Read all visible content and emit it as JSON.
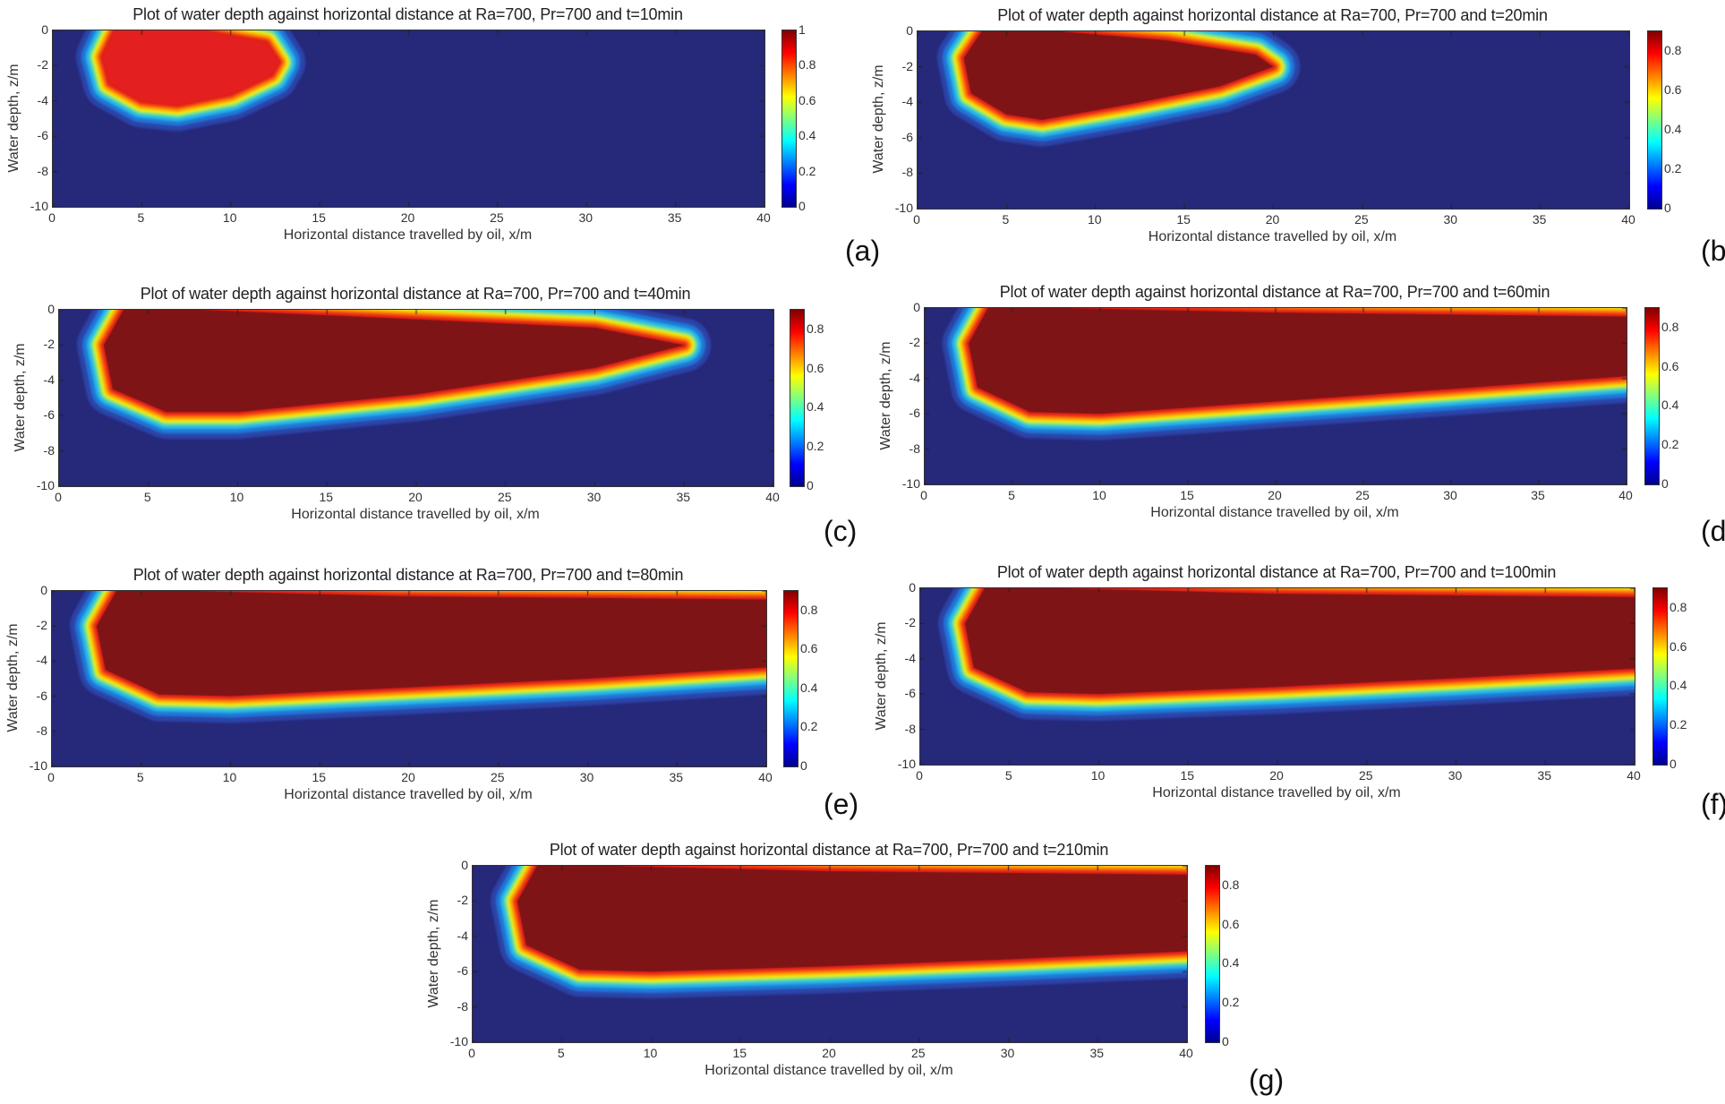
{
  "chart_data": [
    {
      "type": "heatmap",
      "panel_label": "(a)",
      "title": "Plot of water depth against horizontal distance at Ra=700, Pr=700 and t=10min",
      "xlabel": "Horizontal distance travelled by oil, x/m",
      "ylabel": "Water depth, z/m",
      "xlim": [
        0,
        40
      ],
      "ylim": [
        -10,
        0
      ],
      "xticks": [
        "0",
        "5",
        "10",
        "15",
        "20",
        "25",
        "30",
        "35",
        "40"
      ],
      "yticks": [
        "0",
        "-2",
        "-4",
        "-6",
        "-8",
        "-10"
      ],
      "clim": [
        0,
        1
      ],
      "colorbar_ticks": [
        "1",
        "0.8",
        "0.6",
        "0.4",
        "0.2",
        "0"
      ],
      "colormap": "jet",
      "core_color": "#e41f1f",
      "core_outline": [
        [
          3.5,
          0
        ],
        [
          2.8,
          -1.5
        ],
        [
          3.2,
          -3
        ],
        [
          5,
          -4
        ],
        [
          7,
          -4.2
        ],
        [
          10,
          -3.6
        ],
        [
          12.3,
          -2.5
        ],
        [
          12.7,
          -1.8
        ],
        [
          12,
          -0.7
        ],
        [
          8,
          0
        ]
      ]
    },
    {
      "type": "heatmap",
      "panel_label": "(b)",
      "title": "Plot of water depth against horizontal distance at Ra=700, Pr=700 and t=20min",
      "xlabel": "Horizontal distance travelled by oil, x/m",
      "ylabel": "Water depth, z/m",
      "xlim": [
        0,
        40
      ],
      "ylim": [
        -10,
        0
      ],
      "xticks": [
        "0",
        "5",
        "10",
        "15",
        "20",
        "25",
        "30",
        "35",
        "40"
      ],
      "yticks": [
        "0",
        "-2",
        "-4",
        "-6",
        "-8",
        "-10"
      ],
      "clim": [
        0,
        0.9
      ],
      "colorbar_ticks": [
        "0.8",
        "0.6",
        "0.4",
        "0.2",
        "0"
      ],
      "colormap": "jet",
      "core_color": "#7f1416",
      "core_outline": [
        [
          3.6,
          0
        ],
        [
          2.6,
          -1.5
        ],
        [
          3,
          -3.5
        ],
        [
          5,
          -4.7
        ],
        [
          7,
          -5
        ],
        [
          12,
          -4.1
        ],
        [
          17,
          -3.1
        ],
        [
          20,
          -2
        ],
        [
          19,
          -1.3
        ],
        [
          14,
          -0.5
        ],
        [
          8,
          0
        ]
      ]
    },
    {
      "type": "heatmap",
      "panel_label": "(c)",
      "title": "Plot of water depth against horizontal distance at Ra=700, Pr=700 and t=40min",
      "xlabel": "Horizontal distance travelled by oil, x/m",
      "ylabel": "Water depth, z/m",
      "xlim": [
        0,
        40
      ],
      "ylim": [
        -10,
        0
      ],
      "xticks": [
        "0",
        "5",
        "10",
        "15",
        "20",
        "25",
        "30",
        "35",
        "40"
      ],
      "yticks": [
        "0",
        "-2",
        "-4",
        "-6",
        "-8",
        "-10"
      ],
      "clim": [
        0,
        0.9
      ],
      "colorbar_ticks": [
        "0.8",
        "0.6",
        "0.4",
        "0.2",
        "0"
      ],
      "colormap": "jet",
      "core_color": "#7f1416",
      "core_outline": [
        [
          3.6,
          0
        ],
        [
          2.5,
          -2
        ],
        [
          3,
          -4.5
        ],
        [
          6,
          -5.8
        ],
        [
          10,
          -5.8
        ],
        [
          20,
          -4.8
        ],
        [
          30,
          -3.3
        ],
        [
          35,
          -2
        ],
        [
          30,
          -1
        ],
        [
          15,
          -0.3
        ],
        [
          8,
          0
        ]
      ]
    },
    {
      "type": "heatmap",
      "panel_label": "(d)",
      "title": "Plot of water depth against horizontal distance at Ra=700, Pr=700 and t=60min",
      "xlabel": "Horizontal distance travelled by oil, x/m",
      "ylabel": "Water depth, z/m",
      "xlim": [
        0,
        40
      ],
      "ylim": [
        -10,
        0
      ],
      "xticks": [
        "0",
        "5",
        "10",
        "15",
        "20",
        "25",
        "30",
        "35",
        "40"
      ],
      "yticks": [
        "0",
        "-2",
        "-4",
        "-6",
        "-8",
        "-10"
      ],
      "clim": [
        0,
        0.9
      ],
      "colorbar_ticks": [
        "0.8",
        "0.6",
        "0.4",
        "0.2",
        "0"
      ],
      "colormap": "jet",
      "core_color": "#7f1416",
      "core_outline": [
        [
          3.6,
          0
        ],
        [
          2.5,
          -2
        ],
        [
          3,
          -4.5
        ],
        [
          6,
          -5.9
        ],
        [
          10,
          -6
        ],
        [
          20,
          -5.3
        ],
        [
          30,
          -4.6
        ],
        [
          41,
          -3.8
        ],
        [
          41,
          -0.5
        ],
        [
          20,
          -0.25
        ],
        [
          8,
          0
        ]
      ]
    },
    {
      "type": "heatmap",
      "panel_label": "(e)",
      "title": "Plot of water depth against horizontal distance at Ra=700, Pr=700 and t=80min",
      "xlabel": "Horizontal distance travelled by oil, x/m",
      "ylabel": "Water depth, z/m",
      "xlim": [
        0,
        40
      ],
      "ylim": [
        -10,
        0
      ],
      "xticks": [
        "0",
        "5",
        "10",
        "15",
        "20",
        "25",
        "30",
        "35",
        "40"
      ],
      "yticks": [
        "0",
        "-2",
        "-4",
        "-6",
        "-8",
        "-10"
      ],
      "clim": [
        0,
        0.9
      ],
      "colorbar_ticks": [
        "0.8",
        "0.6",
        "0.4",
        "0.2",
        "0"
      ],
      "colormap": "jet",
      "core_color": "#7f1416",
      "core_outline": [
        [
          3.6,
          0
        ],
        [
          2.5,
          -2
        ],
        [
          3,
          -4.5
        ],
        [
          6,
          -5.9
        ],
        [
          10,
          -6
        ],
        [
          20,
          -5.5
        ],
        [
          30,
          -5
        ],
        [
          41,
          -4.3
        ],
        [
          41,
          -0.5
        ],
        [
          20,
          -0.3
        ],
        [
          8,
          0
        ]
      ]
    },
    {
      "type": "heatmap",
      "panel_label": "(f)",
      "title": "Plot of water depth against horizontal distance at Ra=700, Pr=700 and t=100min",
      "xlabel": "Horizontal distance travelled by oil, x/m",
      "ylabel": "Water depth, z/m",
      "xlim": [
        0,
        40
      ],
      "ylim": [
        -10,
        0
      ],
      "xticks": [
        "0",
        "5",
        "10",
        "15",
        "20",
        "25",
        "30",
        "35",
        "40"
      ],
      "yticks": [
        "0",
        "-2",
        "-4",
        "-6",
        "-8",
        "-10"
      ],
      "clim": [
        0,
        0.9
      ],
      "colorbar_ticks": [
        "0.8",
        "0.6",
        "0.4",
        "0.2",
        "0"
      ],
      "colormap": "jet",
      "core_color": "#7f1416",
      "core_outline": [
        [
          3.6,
          0
        ],
        [
          2.5,
          -2
        ],
        [
          3,
          -4.5
        ],
        [
          6,
          -5.9
        ],
        [
          10,
          -6
        ],
        [
          20,
          -5.6
        ],
        [
          30,
          -5.1
        ],
        [
          41,
          -4.5
        ],
        [
          41,
          -0.5
        ],
        [
          20,
          -0.3
        ],
        [
          8,
          0
        ]
      ]
    },
    {
      "type": "heatmap",
      "panel_label": "(g)",
      "title": "Plot of water depth against horizontal distance at Ra=700, Pr=700 and t=210min",
      "xlabel": "Horizontal distance travelled by oil, x/m",
      "ylabel": "Water depth, z/m",
      "xlim": [
        0,
        40
      ],
      "ylim": [
        -10,
        0
      ],
      "xticks": [
        "0",
        "5",
        "10",
        "15",
        "20",
        "25",
        "30",
        "35",
        "40"
      ],
      "yticks": [
        "0",
        "-2",
        "-4",
        "-6",
        "-8",
        "-10"
      ],
      "clim": [
        0,
        0.9
      ],
      "colorbar_ticks": [
        "0.8",
        "0.6",
        "0.4",
        "0.2",
        "0"
      ],
      "colormap": "jet",
      "core_color": "#7f1416",
      "core_outline": [
        [
          3.6,
          0
        ],
        [
          2.5,
          -2
        ],
        [
          3,
          -4.5
        ],
        [
          6,
          -5.9
        ],
        [
          10,
          -6
        ],
        [
          20,
          -5.7
        ],
        [
          30,
          -5.3
        ],
        [
          41,
          -4.8
        ],
        [
          41,
          -0.5
        ],
        [
          20,
          -0.3
        ],
        [
          8,
          0
        ]
      ]
    }
  ]
}
